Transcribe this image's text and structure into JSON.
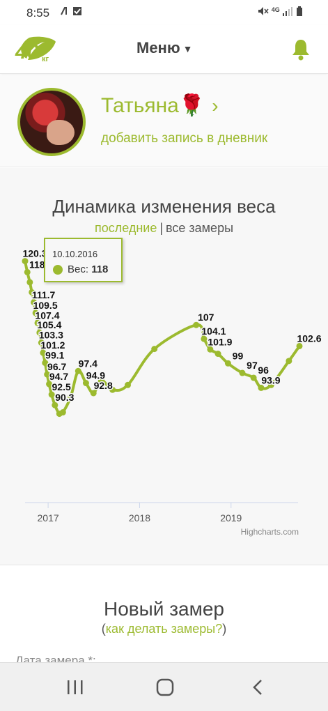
{
  "status_bar": {
    "time": "8:55",
    "network": "4G"
  },
  "header": {
    "logo_text": "40",
    "logo_unit": "кг",
    "menu_label": "Меню"
  },
  "profile": {
    "name": "Татьяна",
    "name_emoji": "🌹",
    "add_entry": "добавить запись в дневник"
  },
  "chart_section": {
    "title": "Динамика изменения веса",
    "filter_active": "последние",
    "filter_separator": "|",
    "filter_other": "все замеры",
    "credits": "Highcharts.com"
  },
  "tooltip": {
    "date": "10.10.2016",
    "series": "Вес:",
    "value": "118"
  },
  "chart_data": {
    "type": "line",
    "title": "Динамика изменения веса",
    "xlabel": "",
    "ylabel": "",
    "x_ticks": [
      "2017",
      "2018",
      "2019"
    ],
    "xlim": [
      "2016-10",
      "2019-10"
    ],
    "ylim": [
      70,
      123
    ],
    "series": [
      {
        "color": "#9cba2f",
        "points": [
          {
            "x": "2016-10-01",
            "y": 120.3
          },
          {
            "x": "2016-10-10",
            "y": 118
          },
          {
            "x": "2016-10-20",
            "y": 115.9
          },
          {
            "x": "2016-10-28",
            "y": 113.8
          },
          {
            "x": "2016-11-05",
            "y": 111.7
          },
          {
            "x": "2016-11-12",
            "y": 109.5
          },
          {
            "x": "2016-11-20",
            "y": 107.4
          },
          {
            "x": "2016-11-28",
            "y": 105.4
          },
          {
            "x": "2016-12-05",
            "y": 103.3
          },
          {
            "x": "2016-12-12",
            "y": 101.2
          },
          {
            "x": "2016-12-20",
            "y": 99.1
          },
          {
            "x": "2016-12-28",
            "y": 96.7
          },
          {
            "x": "2017-01-05",
            "y": 94.7
          },
          {
            "x": "2017-01-15",
            "y": 92.5
          },
          {
            "x": "2017-01-28",
            "y": 90.3
          },
          {
            "x": "2017-02-15",
            "y": 88.5
          },
          {
            "x": "2017-03-01",
            "y": 88.8
          },
          {
            "x": "2017-04-01",
            "y": 92.0
          },
          {
            "x": "2017-05-01",
            "y": 97.4
          },
          {
            "x": "2017-06-01",
            "y": 94.9
          },
          {
            "x": "2017-07-01",
            "y": 92.8
          },
          {
            "x": "2017-08-01",
            "y": 95.5
          },
          {
            "x": "2017-09-15",
            "y": 93.5
          },
          {
            "x": "2017-11-15",
            "y": 94.5
          },
          {
            "x": "2018-03-01",
            "y": 102.0
          },
          {
            "x": "2018-08-15",
            "y": 107
          },
          {
            "x": "2018-09-15",
            "y": 104.1
          },
          {
            "x": "2018-10-10",
            "y": 101.9
          },
          {
            "x": "2018-11-10",
            "y": 101.0
          },
          {
            "x": "2018-12-20",
            "y": 99
          },
          {
            "x": "2019-02-15",
            "y": 97
          },
          {
            "x": "2019-04-01",
            "y": 96
          },
          {
            "x": "2019-05-01",
            "y": 93.9
          },
          {
            "x": "2019-06-10",
            "y": 94.5
          },
          {
            "x": "2019-08-20",
            "y": 99.5
          },
          {
            "x": "2019-10-01",
            "y": 102.6
          }
        ]
      }
    ],
    "data_labels": [
      {
        "x": "2016-10-01",
        "y": 120.3,
        "label": "120.3"
      },
      {
        "x": "2016-10-10",
        "y": 118,
        "label": "118"
      },
      {
        "x": "2016-11-05",
        "y": 111.7,
        "label": "111.7"
      },
      {
        "x": "2016-11-12",
        "y": 109.5,
        "label": "109.5"
      },
      {
        "x": "2016-11-20",
        "y": 107.4,
        "label": "107.4"
      },
      {
        "x": "2016-11-28",
        "y": 105.4,
        "label": "105.4"
      },
      {
        "x": "2016-12-05",
        "y": 103.3,
        "label": "103.3"
      },
      {
        "x": "2016-12-12",
        "y": 101.2,
        "label": "101.2"
      },
      {
        "x": "2016-12-20",
        "y": 99.1,
        "label": "99.1"
      },
      {
        "x": "2016-12-28",
        "y": 96.7,
        "label": "96.7"
      },
      {
        "x": "2017-01-05",
        "y": 94.7,
        "label": "94.7"
      },
      {
        "x": "2017-01-15",
        "y": 92.5,
        "label": "92.5"
      },
      {
        "x": "2017-01-28",
        "y": 90.3,
        "label": "90.3"
      },
      {
        "x": "2017-05-01",
        "y": 97.4,
        "label": "97.4"
      },
      {
        "x": "2017-06-01",
        "y": 94.9,
        "label": "94.9"
      },
      {
        "x": "2017-07-01",
        "y": 92.8,
        "label": "92.8"
      },
      {
        "x": "2018-08-15",
        "y": 107,
        "label": "107"
      },
      {
        "x": "2018-09-15",
        "y": 104.1,
        "label": "104.1"
      },
      {
        "x": "2018-10-10",
        "y": 101.9,
        "label": "101.9"
      },
      {
        "x": "2018-12-20",
        "y": 99,
        "label": "99"
      },
      {
        "x": "2019-02-15",
        "y": 97,
        "label": "97"
      },
      {
        "x": "2019-04-01",
        "y": 96,
        "label": "96"
      },
      {
        "x": "2019-05-01",
        "y": 93.9,
        "label": "93.9"
      },
      {
        "x": "2019-10-01",
        "y": 102.6,
        "label": "102.6"
      }
    ],
    "grid": false,
    "legend": "none"
  },
  "new_measure": {
    "title": "Новый замер",
    "paren_open": "(",
    "link": "как делать замеры?",
    "paren_close": ")",
    "date_label": "Дата замера *:"
  },
  "colors": {
    "accent": "#9cba2f",
    "text": "#444444",
    "axis": "#ccd6eb"
  }
}
